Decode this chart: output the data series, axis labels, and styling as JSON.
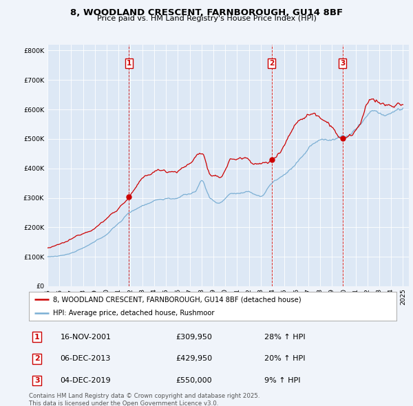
{
  "title": "8, WOODLAND CRESCENT, FARNBOROUGH, GU14 8BF",
  "subtitle": "Price paid vs. HM Land Registry's House Price Index (HPI)",
  "background_color": "#f0f4fa",
  "plot_bg_color": "#dde8f5",
  "ylim": [
    0,
    820000
  ],
  "yticks": [
    0,
    100000,
    200000,
    300000,
    400000,
    500000,
    600000,
    700000,
    800000
  ],
  "transactions": [
    {
      "num": 1,
      "date": "16-NOV-2001",
      "price": 309950,
      "pct": "28%",
      "x_year": 2001.88
    },
    {
      "num": 2,
      "date": "06-DEC-2013",
      "price": 429950,
      "pct": "20%",
      "x_year": 2013.92
    },
    {
      "num": 3,
      "date": "04-DEC-2019",
      "price": 550000,
      "pct": "9%",
      "x_year": 2019.92
    }
  ],
  "legend_house_label": "8, WOODLAND CRESCENT, FARNBOROUGH, GU14 8BF (detached house)",
  "legend_hpi_label": "HPI: Average price, detached house, Rushmoor",
  "house_line_color": "#cc0000",
  "hpi_line_color": "#7bafd4",
  "vline_color": "#cc0000",
  "marker_color": "#cc0000",
  "transaction_label_color": "#cc0000",
  "footer": "Contains HM Land Registry data © Crown copyright and database right 2025.\nThis data is licensed under the Open Government Licence v3.0.",
  "xmin": 1995,
  "xmax": 2025.5
}
